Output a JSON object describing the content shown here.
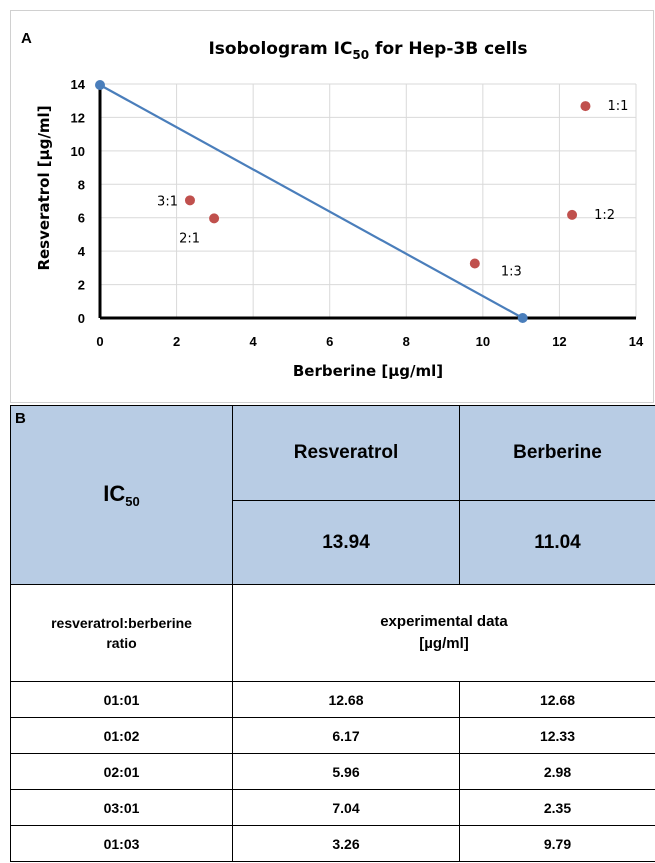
{
  "panel_a": {
    "letter": "A",
    "title_main": "Isobologram IC",
    "title_sub": "50",
    "title_rest": " for Hep-3B cells"
  },
  "chart_data": {
    "type": "scatter",
    "title": "Isobologram IC50 for Hep-3B cells",
    "xlabel": "Berberine [µg/ml]",
    "ylabel": "Resveratrol [µg/ml]",
    "xlim": [
      0,
      14
    ],
    "ylim": [
      0,
      14
    ],
    "xticks": [
      0,
      2,
      4,
      6,
      8,
      10,
      12,
      14
    ],
    "yticks": [
      0,
      2,
      4,
      6,
      8,
      10,
      12,
      14
    ],
    "grid": true,
    "colors": {
      "line": "#4a7ebb",
      "points": "#c0504d"
    },
    "series": [
      {
        "type": "line",
        "x": [
          0,
          11.04
        ],
        "y": [
          13.94,
          0
        ]
      },
      {
        "type": "scatter",
        "points": [
          {
            "label": "1:1",
            "x": 12.68,
            "y": 12.68
          },
          {
            "label": "1:2",
            "x": 12.33,
            "y": 6.17
          },
          {
            "label": "2:1",
            "x": 2.98,
            "y": 5.96
          },
          {
            "label": "3:1",
            "x": 2.35,
            "y": 7.04
          },
          {
            "label": "1:3",
            "x": 9.79,
            "y": 3.26
          }
        ]
      }
    ]
  },
  "panel_b": {
    "letter": "B",
    "ic_label": "IC",
    "ic_sub": "50",
    "col_resveratrol": "Resveratrol",
    "col_berberine": "Berberine",
    "ic50_resveratrol": "13.94",
    "ic50_berberine": "11.04",
    "ratio_header_line1": "resveratrol:berberine",
    "ratio_header_line2": "ratio",
    "exp_header_line1": "experimental data",
    "exp_header_line2": "[µg/ml]",
    "rows": [
      {
        "ratio": "01:01",
        "resveratrol": "12.68",
        "berberine": "12.68"
      },
      {
        "ratio": "01:02",
        "resveratrol": "6.17",
        "berberine": "12.33"
      },
      {
        "ratio": "02:01",
        "resveratrol": "5.96",
        "berberine": "2.98"
      },
      {
        "ratio": "03:01",
        "resveratrol": "7.04",
        "berberine": "2.35"
      },
      {
        "ratio": "01:03",
        "resveratrol": "3.26",
        "berberine": "9.79"
      }
    ]
  }
}
